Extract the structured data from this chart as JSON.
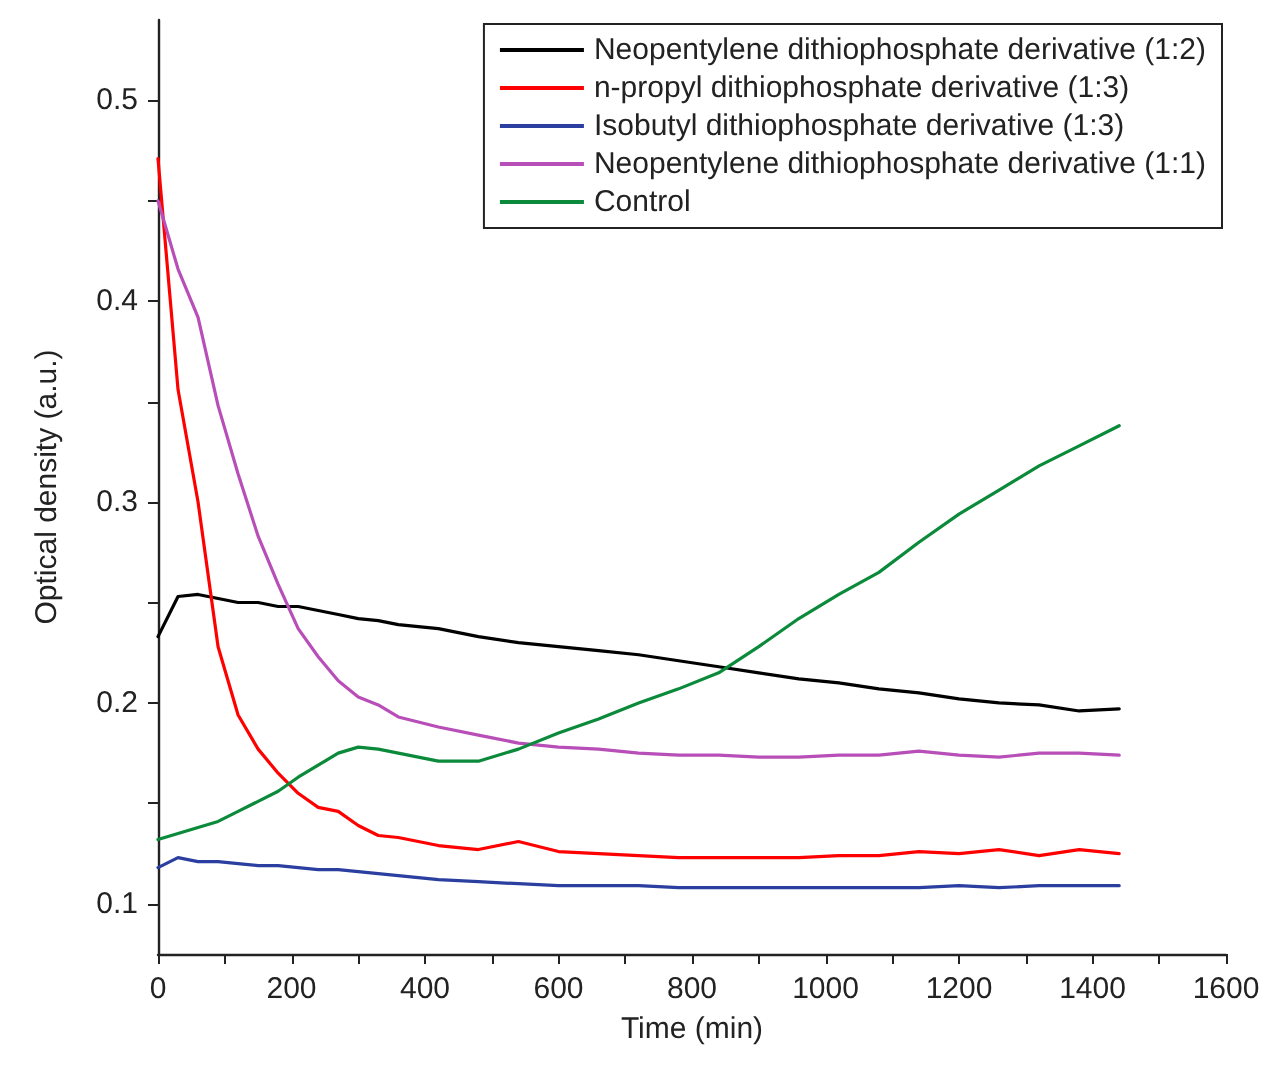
{
  "chart_data": {
    "type": "line",
    "xlabel": "Time (min)",
    "ylabel": "Optical density (a.u.)",
    "x": [
      0,
      30,
      60,
      90,
      120,
      150,
      180,
      210,
      240,
      270,
      300,
      330,
      360,
      420,
      480,
      540,
      600,
      660,
      720,
      780,
      840,
      900,
      960,
      1020,
      1080,
      1140,
      1200,
      1260,
      1320,
      1380,
      1440
    ],
    "series": [
      {
        "name": "Neopentylene dithiophosphate derivative (1:2)",
        "color": "#000000",
        "values": [
          0.233,
          0.253,
          0.254,
          0.252,
          0.25,
          0.25,
          0.248,
          0.248,
          0.246,
          0.244,
          0.242,
          0.241,
          0.239,
          0.237,
          0.233,
          0.23,
          0.228,
          0.226,
          0.224,
          0.221,
          0.218,
          0.215,
          0.212,
          0.21,
          0.207,
          0.205,
          0.202,
          0.2,
          0.199,
          0.196,
          0.197
        ]
      },
      {
        "name": "n-propyl dithiophosphate derivative (1:3)",
        "color": "#ff0000",
        "values": [
          0.471,
          0.356,
          0.3,
          0.228,
          0.194,
          0.177,
          0.165,
          0.155,
          0.148,
          0.146,
          0.139,
          0.134,
          0.133,
          0.129,
          0.127,
          0.131,
          0.126,
          0.125,
          0.124,
          0.123,
          0.123,
          0.123,
          0.123,
          0.124,
          0.124,
          0.126,
          0.125,
          0.127,
          0.124,
          0.127,
          0.125
        ]
      },
      {
        "name": "Isobutyl dithiophosphate derivative (1:3)",
        "color": "#2b3fa0",
        "values": [
          0.118,
          0.123,
          0.121,
          0.121,
          0.12,
          0.119,
          0.119,
          0.118,
          0.117,
          0.117,
          0.116,
          0.115,
          0.114,
          0.112,
          0.111,
          0.11,
          0.109,
          0.109,
          0.109,
          0.108,
          0.108,
          0.108,
          0.108,
          0.108,
          0.108,
          0.108,
          0.109,
          0.108,
          0.109,
          0.109,
          0.109
        ]
      },
      {
        "name": "Neopentylene dithiophosphate derivative (1:1)",
        "color": "#b84fb8",
        "values": [
          0.45,
          0.416,
          0.392,
          0.348,
          0.314,
          0.283,
          0.259,
          0.237,
          0.223,
          0.211,
          0.203,
          0.199,
          0.193,
          0.188,
          0.184,
          0.18,
          0.178,
          0.177,
          0.175,
          0.174,
          0.174,
          0.173,
          0.173,
          0.174,
          0.174,
          0.176,
          0.174,
          0.173,
          0.175,
          0.175,
          0.174
        ]
      },
      {
        "name": "Control",
        "color": "#0a8a3a",
        "values": [
          0.132,
          0.135,
          0.138,
          0.141,
          0.146,
          0.151,
          0.156,
          0.163,
          0.169,
          0.175,
          0.178,
          0.177,
          0.175,
          0.171,
          0.171,
          0.177,
          0.185,
          0.192,
          0.2,
          0.207,
          0.215,
          0.228,
          0.242,
          0.254,
          0.265,
          0.28,
          0.294,
          0.306,
          0.318,
          0.328,
          0.338
        ]
      }
    ],
    "xlim": [
      0,
      1600
    ],
    "xticks": [
      0,
      {
        "value": 100,
        "label": null
      },
      200,
      {
        "value": 300,
        "label": null
      },
      400,
      {
        "value": 500,
        "label": null
      },
      600,
      {
        "value": 700,
        "label": null
      },
      800,
      {
        "value": 900,
        "label": null
      },
      1000,
      {
        "value": 1100,
        "label": null
      },
      1200,
      {
        "value": 1300,
        "label": null
      },
      1400,
      {
        "value": 1500,
        "label": null
      },
      1600
    ],
    "ylim": [
      0.075,
      0.54
    ],
    "yticks": [
      {
        "value": 0.1,
        "label": "0.1"
      },
      {
        "value": 0.15,
        "label": null
      },
      {
        "value": 0.2,
        "label": "0.2"
      },
      {
        "value": 0.25,
        "label": null
      },
      {
        "value": 0.3,
        "label": "0.3"
      },
      {
        "value": 0.35,
        "label": null
      },
      {
        "value": 0.4,
        "label": "0.4"
      },
      {
        "value": 0.45,
        "label": null
      },
      {
        "value": 0.5,
        "label": "0.5"
      }
    ],
    "grid": false,
    "legend": "top right",
    "marker": "none",
    "line_style": "solid"
  }
}
